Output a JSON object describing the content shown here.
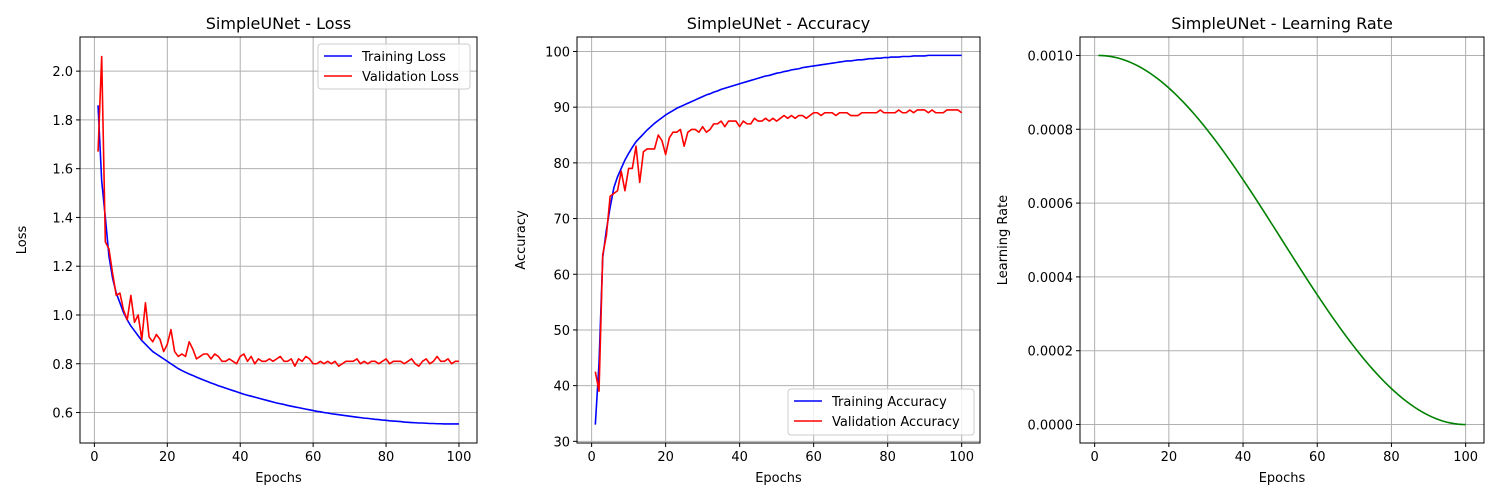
{
  "chart_data": [
    {
      "type": "line",
      "title": "SimpleUNet - Loss",
      "xlabel": "Epochs",
      "ylabel": "Loss",
      "xlim": [
        -3.95,
        104.95
      ],
      "ylim": [
        0.475,
        2.14
      ],
      "xticks": [
        0,
        20,
        40,
        60,
        80,
        100
      ],
      "yticks": [
        0.6,
        0.8,
        1.0,
        1.2,
        1.4,
        1.6,
        1.8,
        2.0
      ],
      "ytick_labels": [
        "0.6",
        "0.8",
        "1.0",
        "1.2",
        "1.4",
        "1.6",
        "1.8",
        "2.0"
      ],
      "grid": true,
      "legend": "top-right",
      "x": {
        "start": 1,
        "end": 100
      },
      "series": [
        {
          "name": "Training Loss",
          "color": "#0000ff",
          "values": [
            1.86,
            1.55,
            1.4,
            1.24,
            1.15,
            1.09,
            1.05,
            1.01,
            0.98,
            0.955,
            0.935,
            0.915,
            0.895,
            0.88,
            0.865,
            0.85,
            0.84,
            0.83,
            0.82,
            0.81,
            0.8,
            0.79,
            0.78,
            0.772,
            0.765,
            0.758,
            0.752,
            0.745,
            0.739,
            0.733,
            0.727,
            0.721,
            0.716,
            0.71,
            0.705,
            0.7,
            0.695,
            0.69,
            0.685,
            0.68,
            0.675,
            0.671,
            0.667,
            0.663,
            0.659,
            0.655,
            0.651,
            0.647,
            0.643,
            0.639,
            0.636,
            0.633,
            0.629,
            0.626,
            0.623,
            0.62,
            0.617,
            0.614,
            0.611,
            0.608,
            0.605,
            0.603,
            0.6,
            0.598,
            0.595,
            0.593,
            0.591,
            0.589,
            0.587,
            0.585,
            0.583,
            0.581,
            0.579,
            0.577,
            0.576,
            0.574,
            0.572,
            0.571,
            0.569,
            0.568,
            0.566,
            0.565,
            0.564,
            0.563,
            0.561,
            0.56,
            0.559,
            0.558,
            0.557,
            0.557,
            0.556,
            0.555,
            0.555,
            0.554,
            0.554,
            0.553,
            0.553,
            0.553,
            0.553,
            0.553
          ]
        },
        {
          "name": "Validation Loss",
          "color": "#ff0000",
          "values": [
            1.67,
            2.06,
            1.3,
            1.27,
            1.17,
            1.08,
            1.09,
            1.02,
            0.98,
            1.08,
            0.97,
            1.0,
            0.9,
            1.05,
            0.91,
            0.89,
            0.92,
            0.9,
            0.85,
            0.88,
            0.94,
            0.85,
            0.83,
            0.84,
            0.83,
            0.89,
            0.86,
            0.82,
            0.83,
            0.84,
            0.84,
            0.82,
            0.84,
            0.83,
            0.81,
            0.81,
            0.82,
            0.81,
            0.8,
            0.83,
            0.84,
            0.81,
            0.83,
            0.8,
            0.82,
            0.81,
            0.81,
            0.82,
            0.81,
            0.82,
            0.83,
            0.81,
            0.81,
            0.82,
            0.79,
            0.82,
            0.81,
            0.83,
            0.82,
            0.8,
            0.8,
            0.81,
            0.8,
            0.81,
            0.8,
            0.81,
            0.79,
            0.8,
            0.81,
            0.81,
            0.81,
            0.82,
            0.8,
            0.81,
            0.8,
            0.81,
            0.81,
            0.8,
            0.81,
            0.82,
            0.8,
            0.81,
            0.81,
            0.81,
            0.8,
            0.81,
            0.82,
            0.8,
            0.79,
            0.81,
            0.82,
            0.8,
            0.81,
            0.83,
            0.81,
            0.81,
            0.82,
            0.8,
            0.81,
            0.81
          ]
        }
      ]
    },
    {
      "type": "line",
      "title": "SimpleUNet - Accuracy",
      "xlabel": "Epochs",
      "ylabel": "Accuracy",
      "xlim": [
        -3.95,
        104.95
      ],
      "ylim": [
        29.7,
        102.6
      ],
      "xticks": [
        0,
        20,
        40,
        60,
        80,
        100
      ],
      "yticks": [
        30,
        40,
        50,
        60,
        70,
        80,
        90,
        100
      ],
      "ytick_labels": [
        "30",
        "40",
        "50",
        "60",
        "70",
        "80",
        "90",
        "100"
      ],
      "grid": true,
      "legend": "bottom-right",
      "x": {
        "start": 1,
        "end": 100
      },
      "series": [
        {
          "name": "Training Accuracy",
          "color": "#0000ff",
          "values": [
            33.0,
            44.0,
            63.0,
            68.0,
            72.0,
            75.5,
            77.5,
            79.0,
            80.5,
            81.7,
            82.8,
            83.8,
            84.5,
            85.2,
            85.9,
            86.5,
            87.1,
            87.6,
            88.1,
            88.6,
            89.0,
            89.4,
            89.8,
            90.1,
            90.4,
            90.7,
            91.0,
            91.3,
            91.6,
            91.9,
            92.2,
            92.4,
            92.7,
            92.9,
            93.2,
            93.4,
            93.6,
            93.8,
            94.0,
            94.2,
            94.4,
            94.6,
            94.8,
            95.0,
            95.2,
            95.4,
            95.6,
            95.7,
            95.9,
            96.1,
            96.2,
            96.4,
            96.5,
            96.7,
            96.8,
            96.9,
            97.1,
            97.2,
            97.3,
            97.4,
            97.5,
            97.6,
            97.7,
            97.8,
            97.9,
            98.0,
            98.1,
            98.2,
            98.3,
            98.3,
            98.4,
            98.5,
            98.5,
            98.6,
            98.7,
            98.7,
            98.8,
            98.8,
            98.9,
            98.9,
            99.0,
            99.0,
            99.0,
            99.1,
            99.1,
            99.1,
            99.2,
            99.2,
            99.2,
            99.2,
            99.3,
            99.3,
            99.3,
            99.3,
            99.3,
            99.3,
            99.3,
            99.3,
            99.3,
            99.3
          ]
        },
        {
          "name": "Validation Accuracy",
          "color": "#ff0000",
          "values": [
            42.5,
            39.0,
            63.5,
            67.0,
            74.0,
            74.5,
            75.0,
            78.5,
            75.0,
            79.0,
            79.0,
            83.0,
            76.5,
            82.0,
            82.5,
            82.5,
            82.5,
            85.0,
            84.0,
            81.5,
            84.5,
            85.5,
            85.5,
            86.0,
            83.0,
            85.5,
            86.0,
            86.0,
            85.5,
            86.5,
            85.5,
            86.0,
            87.0,
            87.0,
            87.5,
            86.5,
            87.5,
            87.5,
            87.5,
            86.5,
            87.5,
            87.0,
            87.0,
            88.0,
            87.5,
            87.5,
            88.0,
            87.5,
            88.0,
            87.5,
            88.0,
            88.5,
            88.0,
            88.5,
            88.0,
            88.5,
            88.5,
            88.0,
            88.5,
            89.0,
            89.0,
            88.5,
            89.0,
            89.0,
            89.0,
            88.5,
            89.0,
            89.0,
            89.0,
            88.5,
            88.5,
            88.5,
            89.0,
            89.0,
            89.0,
            89.0,
            89.0,
            89.5,
            89.0,
            89.0,
            89.0,
            89.0,
            89.5,
            89.0,
            89.0,
            89.5,
            89.0,
            89.5,
            89.5,
            89.5,
            89.0,
            89.5,
            89.0,
            89.0,
            89.0,
            89.5,
            89.5,
            89.5,
            89.5,
            89.0
          ]
        }
      ]
    },
    {
      "type": "line",
      "title": "SimpleUNet - Learning Rate",
      "xlabel": "Epochs",
      "ylabel": "Learning Rate",
      "xlim": [
        -3.95,
        104.95
      ],
      "ylim": [
        -5e-05,
        0.00105
      ],
      "xticks": [
        0,
        20,
        40,
        60,
        80,
        100
      ],
      "yticks": [
        0.0,
        0.0002,
        0.0004,
        0.0006,
        0.0008,
        0.001
      ],
      "ytick_labels": [
        "0.0000",
        "0.0002",
        "0.0004",
        "0.0006",
        "0.0008",
        "0.0010"
      ],
      "grid": true,
      "legend": "none",
      "x": {
        "start": 1,
        "end": 100
      },
      "series": [
        {
          "color": "#008000",
          "schedule": "cosine",
          "lr_max": 0.001,
          "lr_min": 0.0
        }
      ]
    }
  ]
}
